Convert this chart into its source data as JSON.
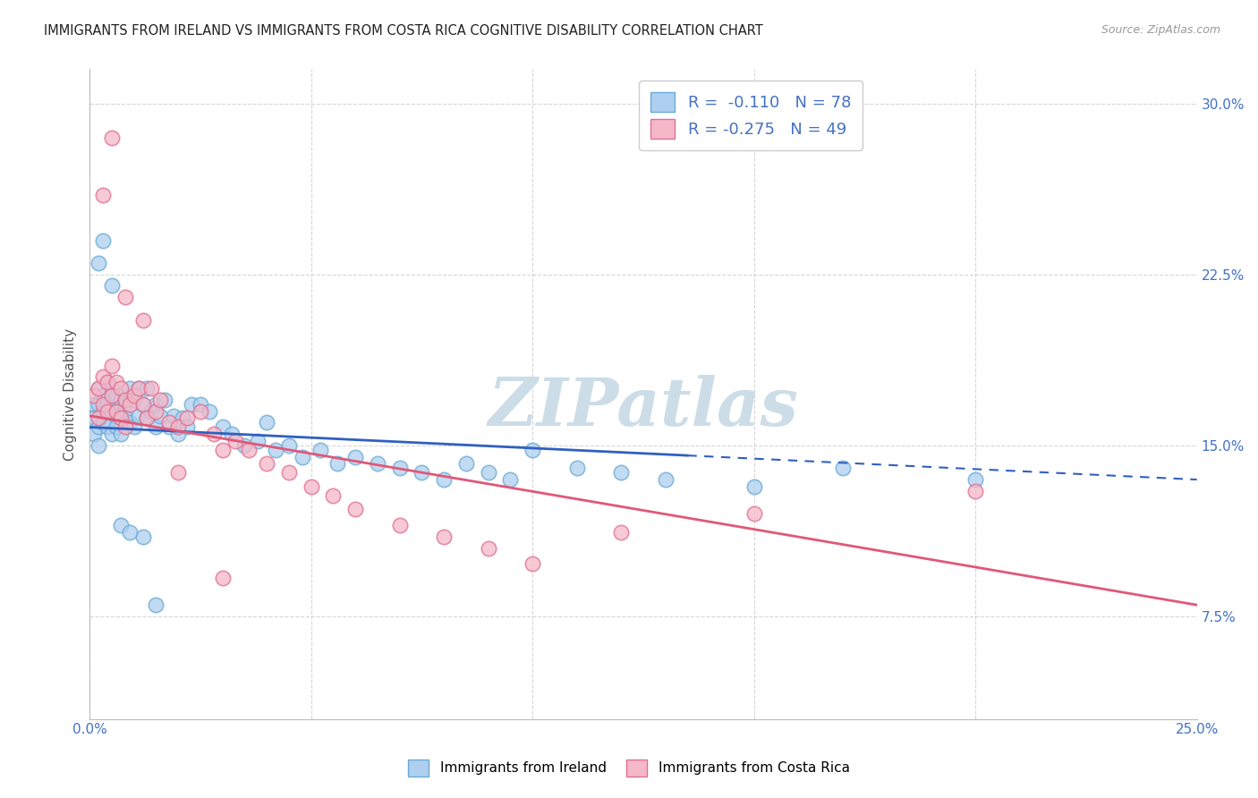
{
  "title": "IMMIGRANTS FROM IRELAND VS IMMIGRANTS FROM COSTA RICA COGNITIVE DISABILITY CORRELATION CHART",
  "source": "Source: ZipAtlas.com",
  "ylabel": "Cognitive Disability",
  "x_min": 0.0,
  "x_max": 0.25,
  "y_min": 0.03,
  "y_max": 0.315,
  "y_ticks": [
    0.075,
    0.15,
    0.225,
    0.3
  ],
  "y_tick_labels": [
    "7.5%",
    "15.0%",
    "22.5%",
    "30.0%"
  ],
  "x_ticks": [
    0.0,
    0.05,
    0.1,
    0.15,
    0.2,
    0.25
  ],
  "x_tick_labels": [
    "0.0%",
    "",
    "",
    "",
    "",
    "25.0%"
  ],
  "ireland_color": "#aecff0",
  "ireland_edge_color": "#6aaad4",
  "costa_rica_color": "#f4b8c8",
  "costa_rica_edge_color": "#e07090",
  "ireland_R": -0.11,
  "ireland_N": 78,
  "costa_rica_R": -0.275,
  "costa_rica_N": 49,
  "regression_ireland_color": "#3060c0",
  "regression_costa_rica_color": "#e05878",
  "regression_ireland_dash_start": 0.135,
  "regression_ireland_x0": 0.0,
  "regression_ireland_y0": 0.158,
  "regression_ireland_x1": 0.25,
  "regression_ireland_y1": 0.135,
  "regression_costa_rica_x0": 0.0,
  "regression_costa_rica_y0": 0.163,
  "regression_costa_rica_x1": 0.25,
  "regression_costa_rica_y1": 0.08,
  "watermark": "ZIPatlas",
  "watermark_color": "#ccdde8",
  "ireland_scatter_x": [
    0.001,
    0.001,
    0.001,
    0.002,
    0.002,
    0.002,
    0.002,
    0.003,
    0.003,
    0.003,
    0.004,
    0.004,
    0.004,
    0.005,
    0.005,
    0.005,
    0.006,
    0.006,
    0.006,
    0.007,
    0.007,
    0.007,
    0.008,
    0.008,
    0.009,
    0.009,
    0.01,
    0.01,
    0.011,
    0.011,
    0.012,
    0.013,
    0.013,
    0.014,
    0.015,
    0.015,
    0.016,
    0.017,
    0.018,
    0.019,
    0.02,
    0.021,
    0.022,
    0.023,
    0.025,
    0.027,
    0.03,
    0.032,
    0.035,
    0.038,
    0.04,
    0.042,
    0.045,
    0.048,
    0.052,
    0.056,
    0.06,
    0.065,
    0.07,
    0.075,
    0.08,
    0.085,
    0.09,
    0.095,
    0.1,
    0.11,
    0.12,
    0.13,
    0.15,
    0.17,
    0.002,
    0.003,
    0.005,
    0.007,
    0.009,
    0.012,
    0.015,
    0.2
  ],
  "ireland_scatter_y": [
    0.168,
    0.162,
    0.155,
    0.175,
    0.168,
    0.158,
    0.15,
    0.172,
    0.165,
    0.16,
    0.178,
    0.168,
    0.158,
    0.175,
    0.165,
    0.155,
    0.172,
    0.163,
    0.158,
    0.17,
    0.162,
    0.155,
    0.168,
    0.162,
    0.175,
    0.16,
    0.17,
    0.158,
    0.175,
    0.163,
    0.168,
    0.175,
    0.162,
    0.165,
    0.168,
    0.158,
    0.163,
    0.17,
    0.158,
    0.163,
    0.155,
    0.162,
    0.158,
    0.168,
    0.168,
    0.165,
    0.158,
    0.155,
    0.15,
    0.152,
    0.16,
    0.148,
    0.15,
    0.145,
    0.148,
    0.142,
    0.145,
    0.142,
    0.14,
    0.138,
    0.135,
    0.142,
    0.138,
    0.135,
    0.148,
    0.14,
    0.138,
    0.135,
    0.132,
    0.14,
    0.23,
    0.24,
    0.22,
    0.115,
    0.112,
    0.11,
    0.08,
    0.135
  ],
  "costa_rica_scatter_x": [
    0.001,
    0.002,
    0.002,
    0.003,
    0.003,
    0.004,
    0.004,
    0.005,
    0.005,
    0.006,
    0.006,
    0.007,
    0.007,
    0.008,
    0.008,
    0.009,
    0.01,
    0.011,
    0.012,
    0.013,
    0.014,
    0.015,
    0.016,
    0.018,
    0.02,
    0.022,
    0.025,
    0.028,
    0.03,
    0.033,
    0.036,
    0.04,
    0.045,
    0.05,
    0.055,
    0.06,
    0.07,
    0.08,
    0.09,
    0.1,
    0.12,
    0.15,
    0.003,
    0.005,
    0.008,
    0.012,
    0.02,
    0.03,
    0.2
  ],
  "costa_rica_scatter_y": [
    0.172,
    0.175,
    0.162,
    0.18,
    0.168,
    0.178,
    0.165,
    0.185,
    0.172,
    0.178,
    0.165,
    0.175,
    0.162,
    0.17,
    0.158,
    0.168,
    0.172,
    0.175,
    0.168,
    0.162,
    0.175,
    0.165,
    0.17,
    0.16,
    0.158,
    0.162,
    0.165,
    0.155,
    0.148,
    0.152,
    0.148,
    0.142,
    0.138,
    0.132,
    0.128,
    0.122,
    0.115,
    0.11,
    0.105,
    0.098,
    0.112,
    0.12,
    0.26,
    0.285,
    0.215,
    0.205,
    0.138,
    0.092,
    0.13
  ],
  "background_color": "#ffffff",
  "grid_color": "#cccccc",
  "title_color": "#222222",
  "tick_label_color": "#4472c4"
}
